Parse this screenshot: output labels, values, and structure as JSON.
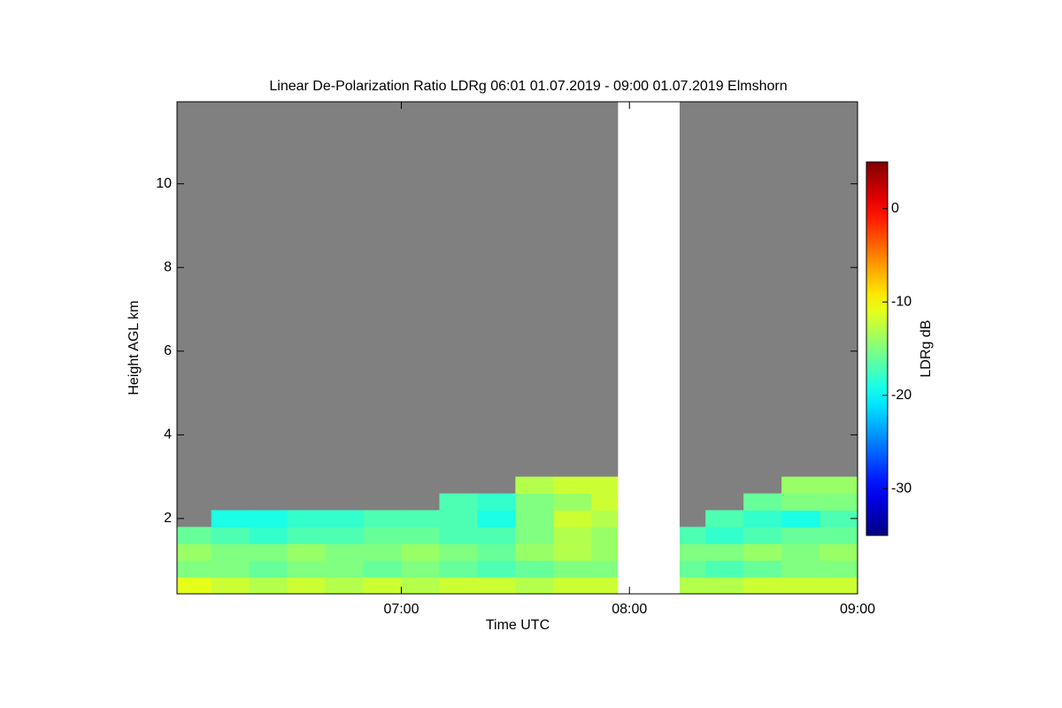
{
  "chart_data": {
    "type": "heatmap",
    "title": "Linear De-Polarization Ratio LDRg   06:01 01.07.2019 - 09:00 01.07.2019 Elmshorn",
    "x_label": "Time UTC",
    "y_label": "Height AGL km",
    "colorbar_label": "LDRg dB",
    "colormap": "jet",
    "missing_color": "#808080",
    "xlim": [
      6.0167,
      9.0
    ],
    "xticks": [
      {
        "value": 7,
        "label": "07:00"
      },
      {
        "value": 8,
        "label": "08:00"
      },
      {
        "value": 9,
        "label": "09:00"
      }
    ],
    "ylim": [
      0.2,
      11.96
    ],
    "yticks": [
      2,
      4,
      6,
      8,
      10
    ],
    "zlim": [
      -35,
      5
    ],
    "zticks": [
      0,
      -10,
      -20,
      -30
    ],
    "gap": [
      7.95,
      8.22
    ],
    "x_bins": [
      6.0167,
      6.1667,
      6.3333,
      6.5,
      6.6667,
      6.8333,
      7,
      7.1667,
      7.3333,
      7.5,
      7.6667,
      7.8333,
      8,
      8.1667,
      8.3333,
      8.5,
      8.6667,
      8.8333,
      9
    ],
    "y_bins": [
      0.2,
      0.6,
      1.0,
      1.4,
      1.8,
      2.2,
      2.6,
      3.0
    ],
    "z": [
      [
        -11,
        -12,
        -13,
        -12,
        -13,
        -12,
        -13,
        -12,
        -12,
        -13,
        -12,
        -12,
        null,
        -13,
        -13,
        -12,
        -12,
        -12
      ],
      [
        -15,
        -15,
        -16,
        -15,
        -15,
        -16,
        -15,
        -16,
        -17,
        -16,
        -15,
        -15,
        null,
        -16,
        -17,
        -16,
        -15,
        -15
      ],
      [
        -14,
        -15,
        -15,
        -14,
        -15,
        -15,
        -14,
        -15,
        -16,
        -14,
        -13,
        -14,
        null,
        -15,
        -15,
        -14,
        -15,
        -14
      ],
      [
        -16,
        -17,
        -18,
        -17,
        -17,
        -16,
        -16,
        -17,
        -17,
        -15,
        -13,
        -14,
        null,
        -17,
        -18,
        -17,
        -16,
        -16
      ],
      [
        null,
        -19,
        -19,
        -18,
        -18,
        -17,
        -17,
        -17,
        -19,
        -15,
        -12,
        -13,
        null,
        null,
        -17,
        -18,
        -19,
        -17
      ],
      [
        null,
        null,
        null,
        null,
        null,
        null,
        null,
        -17,
        -18,
        -15,
        -14,
        -12,
        null,
        null,
        null,
        -16,
        -15,
        -15
      ],
      [
        null,
        null,
        null,
        null,
        null,
        null,
        null,
        null,
        null,
        -13,
        -12,
        -12,
        null,
        null,
        null,
        null,
        -14,
        -14
      ]
    ]
  }
}
